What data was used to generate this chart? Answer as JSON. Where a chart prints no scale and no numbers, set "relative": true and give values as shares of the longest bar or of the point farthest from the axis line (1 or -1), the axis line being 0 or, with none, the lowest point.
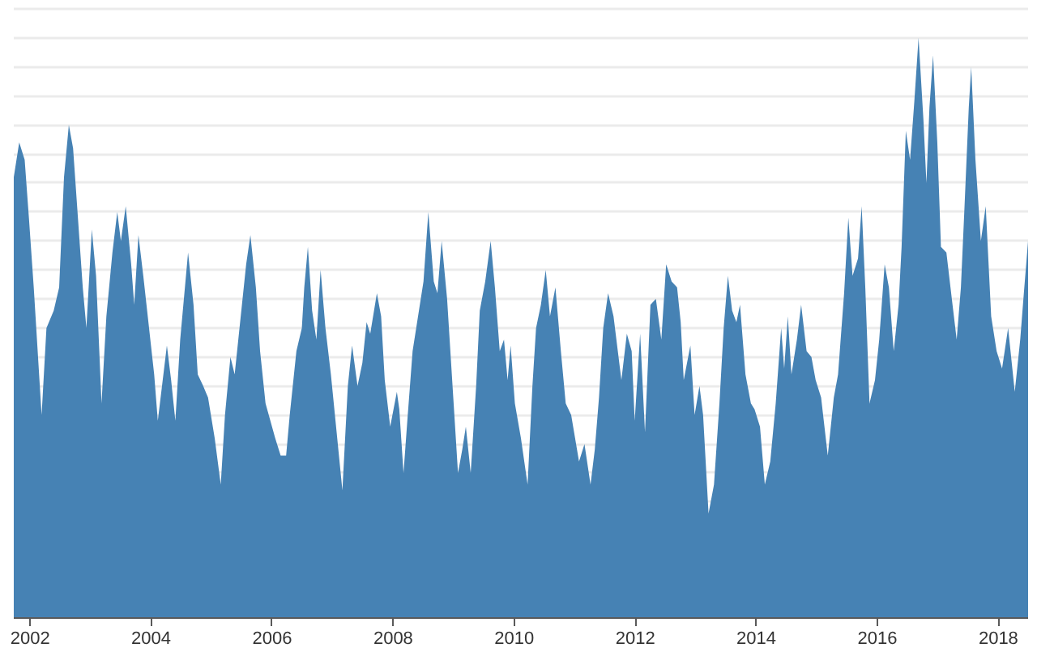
{
  "chart_data": {
    "type": "area",
    "relative": true,
    "grid": "y",
    "xlim": [
      2001.73,
      2018.49
    ],
    "xticks": [
      2002,
      2004,
      2006,
      2008,
      2010,
      2012,
      2014,
      2016,
      2018
    ],
    "x": [
      2001.73,
      2001.82,
      2001.91,
      2001.98,
      2002.06,
      2002.19,
      2002.27,
      2002.39,
      2002.48,
      2002.56,
      2002.64,
      2002.71,
      2002.87,
      2002.93,
      2003.02,
      2003.09,
      2003.18,
      2003.26,
      2003.36,
      2003.44,
      2003.5,
      2003.58,
      2003.67,
      2003.72,
      2003.79,
      2003.87,
      2004.05,
      2004.11,
      2004.26,
      2004.33,
      2004.4,
      2004.48,
      2004.61,
      2004.7,
      2004.77,
      2004.86,
      2004.94,
      2005.05,
      2005.15,
      2005.22,
      2005.31,
      2005.38,
      2005.57,
      2005.64,
      2005.73,
      2005.8,
      2005.89,
      2006.05,
      2006.14,
      2006.23,
      2006.29,
      2006.4,
      2006.49,
      2006.53,
      2006.59,
      2006.66,
      2006.73,
      2006.8,
      2006.88,
      2006.97,
      2007.16,
      2007.25,
      2007.32,
      2007.41,
      2007.49,
      2007.56,
      2007.62,
      2007.73,
      2007.8,
      2007.86,
      2007.95,
      2008.06,
      2008.1,
      2008.17,
      2008.24,
      2008.32,
      2008.5,
      2008.58,
      2008.67,
      2008.73,
      2008.8,
      2008.89,
      2008.98,
      2009.07,
      2009.14,
      2009.2,
      2009.28,
      2009.37,
      2009.43,
      2009.52,
      2009.61,
      2009.68,
      2009.76,
      2009.83,
      2009.89,
      2009.94,
      2010.01,
      2010.11,
      2010.22,
      2010.3,
      2010.36,
      2010.44,
      2010.52,
      2010.59,
      2010.68,
      2010.77,
      2010.85,
      2010.94,
      2011.07,
      2011.16,
      2011.26,
      2011.33,
      2011.4,
      2011.47,
      2011.55,
      2011.64,
      2011.77,
      2011.86,
      2011.94,
      2011.99,
      2012.08,
      2012.16,
      2012.25,
      2012.34,
      2012.43,
      2012.51,
      2012.6,
      2012.69,
      2012.75,
      2012.8,
      2012.91,
      2012.98,
      2013.06,
      2013.12,
      2013.21,
      2013.3,
      2013.39,
      2013.46,
      2013.53,
      2013.6,
      2013.67,
      2013.73,
      2013.82,
      2013.91,
      2013.97,
      2014.06,
      2014.14,
      2014.23,
      2014.32,
      2014.41,
      2014.46,
      2014.52,
      2014.58,
      2014.67,
      2014.74,
      2014.83,
      2014.91,
      2014.98,
      2015.07,
      2015.18,
      2015.28,
      2015.35,
      2015.45,
      2015.52,
      2015.59,
      2015.68,
      2015.74,
      2015.8,
      2015.87,
      2015.96,
      2016.03,
      2016.12,
      2016.19,
      2016.27,
      2016.35,
      2016.4,
      2016.47,
      2016.54,
      2016.61,
      2016.68,
      2016.76,
      2016.81,
      2016.86,
      2016.92,
      2016.99,
      2017.05,
      2017.14,
      2017.23,
      2017.31,
      2017.38,
      2017.44,
      2017.51,
      2017.55,
      2017.62,
      2017.71,
      2017.79,
      2017.88,
      2017.97,
      2018.06,
      2018.16,
      2018.27,
      2018.36,
      2018.42,
      2018.49
    ],
    "series": [
      {
        "color": "#4682b4",
        "values": [
          0.76,
          0.82,
          0.79,
          0.69,
          0.57,
          0.35,
          0.5,
          0.53,
          0.57,
          0.76,
          0.85,
          0.81,
          0.57,
          0.5,
          0.67,
          0.59,
          0.37,
          0.52,
          0.63,
          0.7,
          0.65,
          0.71,
          0.61,
          0.54,
          0.66,
          0.59,
          0.42,
          0.34,
          0.47,
          0.41,
          0.34,
          0.48,
          0.63,
          0.54,
          0.42,
          0.4,
          0.38,
          0.31,
          0.23,
          0.35,
          0.45,
          0.42,
          0.61,
          0.66,
          0.57,
          0.46,
          0.37,
          0.31,
          0.28,
          0.28,
          0.35,
          0.46,
          0.5,
          0.57,
          0.64,
          0.53,
          0.48,
          0.6,
          0.5,
          0.42,
          0.22,
          0.4,
          0.47,
          0.4,
          0.44,
          0.51,
          0.49,
          0.56,
          0.52,
          0.41,
          0.33,
          0.39,
          0.36,
          0.25,
          0.35,
          0.46,
          0.58,
          0.7,
          0.58,
          0.56,
          0.65,
          0.55,
          0.4,
          0.25,
          0.29,
          0.33,
          0.25,
          0.4,
          0.53,
          0.58,
          0.65,
          0.57,
          0.46,
          0.48,
          0.41,
          0.47,
          0.37,
          0.31,
          0.23,
          0.4,
          0.5,
          0.54,
          0.6,
          0.52,
          0.57,
          0.46,
          0.37,
          0.35,
          0.27,
          0.3,
          0.23,
          0.29,
          0.38,
          0.5,
          0.56,
          0.52,
          0.41,
          0.49,
          0.46,
          0.34,
          0.49,
          0.32,
          0.54,
          0.55,
          0.48,
          0.61,
          0.58,
          0.57,
          0.51,
          0.41,
          0.47,
          0.35,
          0.4,
          0.35,
          0.18,
          0.23,
          0.37,
          0.5,
          0.59,
          0.53,
          0.51,
          0.54,
          0.42,
          0.37,
          0.36,
          0.33,
          0.23,
          0.27,
          0.37,
          0.5,
          0.43,
          0.52,
          0.42,
          0.48,
          0.54,
          0.46,
          0.45,
          0.41,
          0.38,
          0.28,
          0.38,
          0.42,
          0.56,
          0.69,
          0.59,
          0.62,
          0.71,
          0.57,
          0.37,
          0.41,
          0.48,
          0.61,
          0.57,
          0.46,
          0.54,
          0.64,
          0.84,
          0.79,
          0.89,
          1.0,
          0.86,
          0.75,
          0.88,
          0.97,
          0.82,
          0.64,
          0.63,
          0.55,
          0.48,
          0.57,
          0.71,
          0.88,
          0.95,
          0.79,
          0.65,
          0.71,
          0.52,
          0.46,
          0.43,
          0.5,
          0.39,
          0.48,
          0.56,
          0.65
        ]
      }
    ]
  }
}
